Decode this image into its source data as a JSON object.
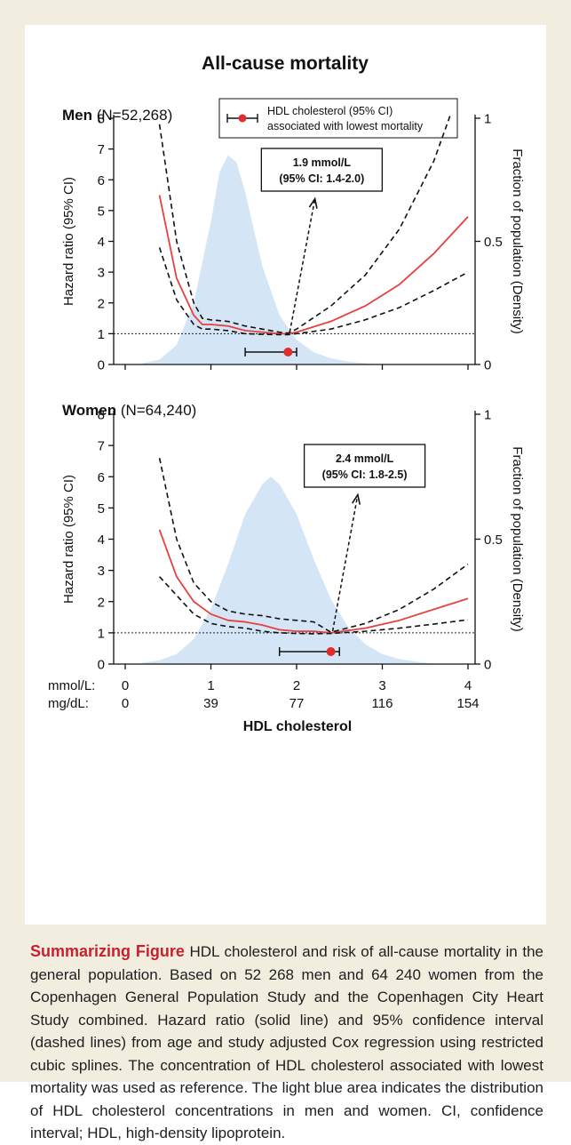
{
  "figure": {
    "title": "All-cause mortality",
    "legend": {
      "line1": "HDL cholesterol (95% CI)",
      "line2": "associated with lowest mortality"
    },
    "x_axis": {
      "mmol_label": "mmol/L:",
      "mgdl_label": "mg/dL:",
      "title": "HDL cholesterol",
      "mmol_ticks": [
        "0",
        "1",
        "2",
        "3",
        "4"
      ],
      "mgdl_ticks": [
        "0",
        "39",
        "77",
        "116",
        "154"
      ]
    },
    "colors": {
      "hazard_line": "#e8403e",
      "ci_lines": "#111111",
      "density_fill": "#d4e6f6",
      "marker": "#e32b2b",
      "background": "#f1eee0"
    }
  },
  "chart_data": [
    {
      "type": "line",
      "panel_label": "Men",
      "n_label": "(N=52,268)",
      "ylabel": "Hazard ratio (95% CI)",
      "ylabel_right": "Fraction of population (Density)",
      "xlabel": "HDL cholesterol",
      "xlim": [
        0,
        4
      ],
      "ylim": [
        0,
        8
      ],
      "ylim_right": [
        0,
        1
      ],
      "y_ticks": [
        "0",
        "1",
        "2",
        "3",
        "4",
        "5",
        "6",
        "7",
        "8"
      ],
      "y_right_ticks": [
        "0",
        "0.5",
        "1"
      ],
      "reference_line": 1,
      "annotation": {
        "line1": "1.9 mmol/L",
        "line2": "(95% CI: 1.4-2.0)"
      },
      "lowest": {
        "x": 1.9,
        "lo": 1.4,
        "hi": 2.0
      },
      "series": [
        {
          "name": "Hazard ratio",
          "style": "solid",
          "x": [
            0.4,
            0.6,
            0.8,
            0.9,
            1.0,
            1.2,
            1.4,
            1.6,
            1.8,
            1.9,
            2.0,
            2.4,
            2.8,
            3.2,
            3.6,
            4.0
          ],
          "y": [
            5.5,
            2.8,
            1.6,
            1.3,
            1.3,
            1.25,
            1.1,
            1.05,
            1.0,
            1.0,
            1.05,
            1.4,
            1.9,
            2.6,
            3.6,
            4.8
          ]
        },
        {
          "name": "Upper 95% CI",
          "style": "dashed",
          "x": [
            0.4,
            0.6,
            0.8,
            0.9,
            1.0,
            1.2,
            1.4,
            1.6,
            1.8,
            1.9,
            2.0,
            2.4,
            2.8,
            3.2,
            3.6,
            4.0
          ],
          "y": [
            7.8,
            4.0,
            2.0,
            1.5,
            1.45,
            1.4,
            1.25,
            1.15,
            1.05,
            1.02,
            1.15,
            1.9,
            2.9,
            4.4,
            6.6,
            9.7
          ]
        },
        {
          "name": "Lower 95% CI",
          "style": "dashed",
          "x": [
            0.4,
            0.6,
            0.8,
            0.9,
            1.0,
            1.2,
            1.4,
            1.6,
            1.8,
            1.9,
            2.0,
            2.4,
            2.8,
            3.2,
            3.6,
            4.0
          ],
          "y": [
            3.8,
            2.1,
            1.3,
            1.15,
            1.15,
            1.1,
            1.0,
            0.98,
            0.97,
            0.97,
            1.0,
            1.15,
            1.45,
            1.85,
            2.4,
            3.0
          ]
        }
      ],
      "density": {
        "x": [
          0.2,
          0.4,
          0.6,
          0.8,
          1.0,
          1.1,
          1.2,
          1.3,
          1.4,
          1.5,
          1.6,
          1.8,
          2.0,
          2.2,
          2.4,
          2.6,
          2.8,
          3.0
        ],
        "y": [
          0.005,
          0.02,
          0.08,
          0.25,
          0.58,
          0.78,
          0.85,
          0.82,
          0.7,
          0.55,
          0.4,
          0.2,
          0.1,
          0.05,
          0.025,
          0.012,
          0.005,
          0.0
        ]
      }
    },
    {
      "type": "line",
      "panel_label": "Women",
      "n_label": "(N=64,240)",
      "ylabel": "Hazard ratio (95% CI)",
      "ylabel_right": "Fraction of population (Density)",
      "xlabel": "HDL cholesterol",
      "xlim": [
        0,
        4
      ],
      "ylim": [
        0,
        8
      ],
      "ylim_right": [
        0,
        1
      ],
      "y_ticks": [
        "0",
        "1",
        "2",
        "3",
        "4",
        "5",
        "6",
        "7",
        "8"
      ],
      "y_right_ticks": [
        "0",
        "0.5",
        "1"
      ],
      "reference_line": 1,
      "annotation": {
        "line1": "2.4 mmol/L",
        "line2": "(95% CI: 1.8-2.5)"
      },
      "lowest": {
        "x": 2.4,
        "lo": 1.8,
        "hi": 2.5
      },
      "series": [
        {
          "name": "Hazard ratio",
          "style": "solid",
          "x": [
            0.4,
            0.6,
            0.8,
            1.0,
            1.2,
            1.4,
            1.6,
            1.8,
            2.0,
            2.2,
            2.4,
            2.8,
            3.2,
            3.6,
            4.0
          ],
          "y": [
            4.3,
            2.8,
            2.0,
            1.6,
            1.4,
            1.35,
            1.25,
            1.1,
            1.05,
            1.05,
            1.0,
            1.15,
            1.4,
            1.75,
            2.1
          ]
        },
        {
          "name": "Upper 95% CI",
          "style": "dashed",
          "x": [
            0.4,
            0.6,
            0.8,
            1.0,
            1.2,
            1.4,
            1.6,
            1.8,
            2.0,
            2.2,
            2.4,
            2.8,
            3.2,
            3.6,
            4.0
          ],
          "y": [
            6.6,
            4.0,
            2.6,
            2.0,
            1.7,
            1.6,
            1.55,
            1.45,
            1.4,
            1.35,
            1.02,
            1.3,
            1.75,
            2.4,
            3.2
          ]
        },
        {
          "name": "Lower 95% CI",
          "style": "dashed",
          "x": [
            0.4,
            0.6,
            0.8,
            1.0,
            1.2,
            1.4,
            1.6,
            1.8,
            2.0,
            2.2,
            2.4,
            2.8,
            3.2,
            3.6,
            4.0
          ],
          "y": [
            2.8,
            2.2,
            1.6,
            1.3,
            1.2,
            1.15,
            1.05,
            1.0,
            0.98,
            0.97,
            0.98,
            1.05,
            1.15,
            1.28,
            1.42
          ]
        }
      ],
      "density": {
        "x": [
          0.2,
          0.4,
          0.6,
          0.8,
          1.0,
          1.2,
          1.4,
          1.6,
          1.7,
          1.8,
          2.0,
          2.2,
          2.4,
          2.6,
          2.8,
          3.0,
          3.2,
          3.4,
          3.6
        ],
        "y": [
          0.005,
          0.015,
          0.04,
          0.1,
          0.22,
          0.4,
          0.6,
          0.72,
          0.75,
          0.72,
          0.6,
          0.42,
          0.26,
          0.15,
          0.08,
          0.04,
          0.02,
          0.01,
          0.0
        ]
      }
    }
  ],
  "caption": {
    "title": "Summarizing Figure",
    "text": " HDL cholesterol and risk of all-cause mortality in the general population. Based on 52 268 men and 64 240 women from the Copenhagen General Population Study and the Copenhagen City Heart Study combined. Hazard ratio (solid line) and 95% confidence interval (dashed lines) from age and study adjusted Cox regression using restricted cubic splines. The concentration of HDL cholesterol associated with lowest mortality was used as reference. The light blue area indicates the distribution of HDL cholesterol concentrations in men and women. CI, confidence interval; HDL, high-density lipoprotein."
  }
}
